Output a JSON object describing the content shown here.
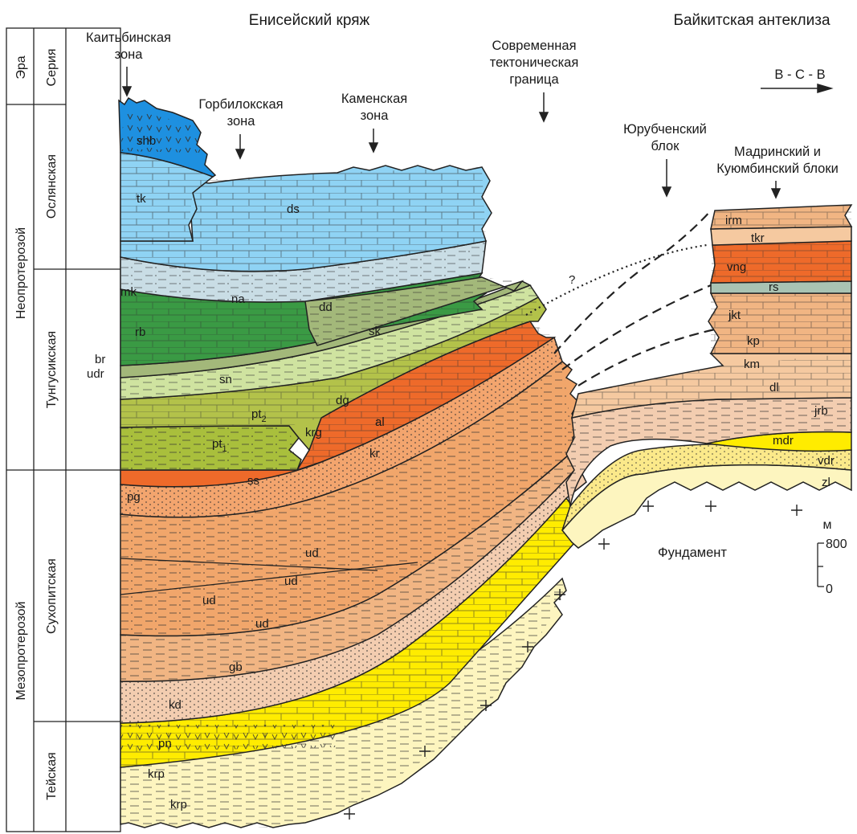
{
  "headers": {
    "left": "Енисейский кряж",
    "right": "Байкитская антеклиза"
  },
  "direction": "В - С - В",
  "column": {
    "era_header": "Эра",
    "series_header": "Серия",
    "eras": [
      "Неопротерозой",
      "Мезопротерозой"
    ],
    "series": [
      "Ослянская",
      "Тунгусикская",
      "Сухопитская",
      "Тейская"
    ]
  },
  "zones": {
    "kaitbinskaya": [
      "Каитьбинская",
      "зона"
    ],
    "gorbilokskaya": [
      "Горбилокская",
      "зона"
    ],
    "kamenskaya": [
      "Каменская",
      "зона"
    ],
    "boundary": [
      "Современная",
      "тектоническая",
      "граница"
    ],
    "yurubchensky": [
      "Юрубченский",
      "блок"
    ],
    "madrinsky": [
      "Мадринский и",
      "Куюмбинский блоки"
    ]
  },
  "units": {
    "shb": "shb",
    "tk": "tk",
    "ds": "ds",
    "na": "na",
    "mk": "mk",
    "rb": "rb",
    "dd": "dd",
    "sk": "sk",
    "br": "br",
    "udr": "udr",
    "sn": "sn",
    "pt2": "pt",
    "pt2_sub": "2",
    "pt1": "pt",
    "pt1_sub": "1",
    "dg": "dg",
    "krg": "krg",
    "al": "al",
    "kr": "kr",
    "ss": "ss",
    "pg": "pg",
    "ud1": "ud",
    "ud2": "ud",
    "ud3": "ud",
    "ud4": "ud",
    "gb": "gb",
    "kd": "kd",
    "pn": "pn",
    "krp1": "krp",
    "krp2": "krp",
    "irm": "irm",
    "tkr": "tkr",
    "vng": "vng",
    "rs": "rs",
    "jkt": "jkt",
    "kp": "kp",
    "km": "km",
    "dl": "dl",
    "jrb": "jrb",
    "mdr": "mdr",
    "vdr": "vdr",
    "zl": "zl"
  },
  "question_mark": "?",
  "basement": "Фундамент",
  "scale": {
    "unit": "м",
    "top": "800",
    "bottom": "0"
  },
  "colors": {
    "blue_dark": "#1e90e0",
    "blue_light": "#8fd3f4",
    "grey_blue": "#c9dde5",
    "green_dark": "#3a9a44",
    "green_olive": "#a3b87a",
    "green_light": "#cfe3a0",
    "olive": "#a9bf3c",
    "orange_red": "#ee6a2a",
    "orange": "#f29a5a",
    "tan": "#f1b583",
    "pink_beige": "#f3cdb0",
    "yellow": "#ffec00",
    "cream": "#fdf5bf",
    "sage": "#a9c3b3"
  }
}
